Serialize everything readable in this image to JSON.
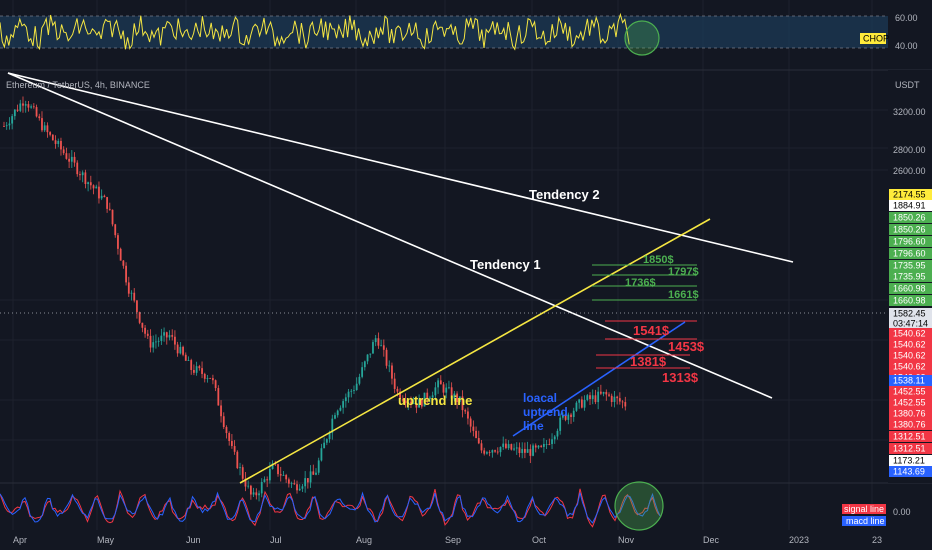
{
  "chart_data": {
    "type": "candlestick",
    "title": "Ethereum / TetherUS, 4h, BINANCE",
    "currency_label": "USDT",
    "y_ticks": [
      "3200.00",
      "2800.00",
      "2600.00"
    ],
    "x_ticks": [
      "Apr",
      "May",
      "Jun",
      "Jul",
      "Aug",
      "Sep",
      "Oct",
      "Nov",
      "Dec",
      "2023",
      "23"
    ],
    "ylim": [
      1100,
      3500
    ],
    "price_path": [
      {
        "date": "Apr 1",
        "price": 3280
      },
      {
        "date": "Apr 4",
        "price": 3450
      },
      {
        "date": "Apr 10",
        "price": 3250
      },
      {
        "date": "Apr 20",
        "price": 3100
      },
      {
        "date": "Apr 28",
        "price": 2950
      },
      {
        "date": "May 5",
        "price": 2800
      },
      {
        "date": "May 10",
        "price": 2300
      },
      {
        "date": "May 12",
        "price": 1950
      },
      {
        "date": "May 20",
        "price": 2000
      },
      {
        "date": "Jun 1",
        "price": 1800
      },
      {
        "date": "Jun 10",
        "price": 1750
      },
      {
        "date": "Jun 13",
        "price": 1300
      },
      {
        "date": "Jun 18",
        "price": 1000
      },
      {
        "date": "Jun 25",
        "price": 1200
      },
      {
        "date": "Jul 1",
        "price": 1080
      },
      {
        "date": "Jul 10",
        "price": 1150
      },
      {
        "date": "Jul 20",
        "price": 1550
      },
      {
        "date": "Aug 1",
        "price": 1700
      },
      {
        "date": "Aug 14",
        "price": 2000
      },
      {
        "date": "Aug 20",
        "price": 1650
      },
      {
        "date": "Sep 1",
        "price": 1580
      },
      {
        "date": "Sep 8",
        "price": 1700
      },
      {
        "date": "Sep 14",
        "price": 1600
      },
      {
        "date": "Sep 20",
        "price": 1300
      },
      {
        "date": "Oct 1",
        "price": 1320
      },
      {
        "date": "Oct 10",
        "price": 1290
      },
      {
        "date": "Oct 21",
        "price": 1300
      },
      {
        "date": "Oct 26",
        "price": 1500
      },
      {
        "date": "Nov 1",
        "price": 1600
      },
      {
        "date": "Nov 5",
        "price": 1640
      },
      {
        "date": "Nov 8",
        "price": 1582
      }
    ],
    "price_labels": [
      {
        "text": "2174.55",
        "bg": "#ffeb3b",
        "fg": "#000000"
      },
      {
        "text": "1884.91",
        "bg": "#ffffff",
        "fg": "#000000"
      },
      {
        "text": "1850.26",
        "bg": "#4caf50",
        "fg": "#ffffff"
      },
      {
        "text": "1850.26",
        "bg": "#4caf50",
        "fg": "#ffffff"
      },
      {
        "text": "1796.60",
        "bg": "#4caf50",
        "fg": "#ffffff"
      },
      {
        "text": "1796.60",
        "bg": "#4caf50",
        "fg": "#ffffff"
      },
      {
        "text": "1735.95",
        "bg": "#4caf50",
        "fg": "#ffffff"
      },
      {
        "text": "1735.95",
        "bg": "#4caf50",
        "fg": "#ffffff"
      },
      {
        "text": "1660.98",
        "bg": "#4caf50",
        "fg": "#ffffff"
      },
      {
        "text": "1660.98",
        "bg": "#4caf50",
        "fg": "#ffffff"
      },
      {
        "text": "1582.45",
        "bg": "#e0e3eb",
        "fg": "#000000"
      },
      {
        "text": "03:47:14",
        "bg": "#e0e3eb",
        "fg": "#000000"
      },
      {
        "text": "1540.62",
        "bg": "#f23645",
        "fg": "#ffffff"
      },
      {
        "text": "1540.62",
        "bg": "#f23645",
        "fg": "#ffffff"
      },
      {
        "text": "1540.62",
        "bg": "#f23645",
        "fg": "#ffffff"
      },
      {
        "text": "1540.62",
        "bg": "#f23645",
        "fg": "#ffffff"
      },
      {
        "text": "1540.62",
        "bg": "#f23645",
        "fg": "#ffffff"
      },
      {
        "text": "1538.11",
        "bg": "#2962ff",
        "fg": "#ffffff"
      },
      {
        "text": "1452.55",
        "bg": "#f23645",
        "fg": "#ffffff"
      },
      {
        "text": "1452.55",
        "bg": "#f23645",
        "fg": "#ffffff"
      },
      {
        "text": "1380.76",
        "bg": "#f23645",
        "fg": "#ffffff"
      },
      {
        "text": "1380.76",
        "bg": "#f23645",
        "fg": "#ffffff"
      },
      {
        "text": "1312.51",
        "bg": "#f23645",
        "fg": "#ffffff"
      },
      {
        "text": "1312.51",
        "bg": "#f23645",
        "fg": "#ffffff"
      },
      {
        "text": "1173.21",
        "bg": "#ffffff",
        "fg": "#000000"
      },
      {
        "text": "1143.69",
        "bg": "#2962ff",
        "fg": "#ffffff"
      }
    ],
    "levels": [
      {
        "label": "1850$",
        "color": "#4caf50"
      },
      {
        "label": "1797$",
        "color": "#4caf50"
      },
      {
        "label": "1736$",
        "color": "#4caf50"
      },
      {
        "label": "1661$",
        "color": "#4caf50"
      },
      {
        "label": "1541$",
        "color": "#f23645"
      },
      {
        "label": "1453$",
        "color": "#f23645"
      },
      {
        "label": "1381$",
        "color": "#f23645"
      },
      {
        "label": "1313$",
        "color": "#f23645"
      }
    ],
    "annotations": [
      "Tendency 2",
      "Tendency 1",
      "uptrend line",
      "loacal",
      "uptrend",
      "line"
    ],
    "chop": {
      "label": "CHOP",
      "ticks": [
        "60.00",
        "40.00"
      ]
    },
    "macd": {
      "labels": [
        "signal line",
        "macd line"
      ],
      "tick": "0.00"
    }
  },
  "colors": {
    "background": "#131722",
    "up": "#26a69a",
    "down": "#ef5350",
    "trend": "#ffffff",
    "uptrend": "#f5e642",
    "local_uptrend": "#2962ff",
    "chop": "#f5e642",
    "chop_band": "#1c3a56",
    "circle": "#4caf50"
  }
}
